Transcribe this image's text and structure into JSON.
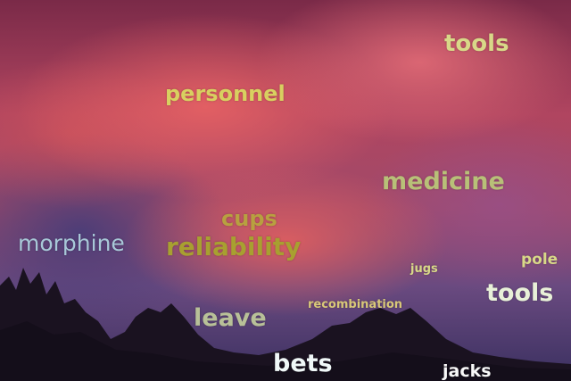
{
  "words": [
    {
      "text": "tools",
      "color": "#d8d888"
    },
    {
      "text": "personnel",
      "color": "#d8d060"
    },
    {
      "text": "medicine",
      "color": "#b8c078"
    },
    {
      "text": "cups",
      "color": "#b8a040"
    },
    {
      "text": "morphine",
      "color": "#a8c8d8"
    },
    {
      "text": "reliability",
      "color": "#a8a030"
    },
    {
      "text": "jugs",
      "color": "#d8d888"
    },
    {
      "text": "pole",
      "color": "#d8d888"
    },
    {
      "text": "tools",
      "color": "#e8f0d8"
    },
    {
      "text": "recombination",
      "color": "#d8c878"
    },
    {
      "text": "leave",
      "color": "#b8c098"
    },
    {
      "text": "bets",
      "color": "#f0f8f8"
    },
    {
      "text": "jacks",
      "color": "#f8f8f8"
    }
  ]
}
